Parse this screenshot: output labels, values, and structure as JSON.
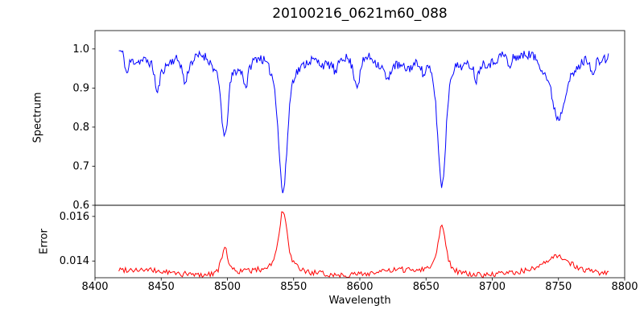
{
  "figure": {
    "background": "#ffffff"
  },
  "chart_data": {
    "type": "line",
    "title": "20100216_0621m60_088",
    "xlabel": "Wavelength",
    "xlim": [
      8400,
      8800
    ],
    "x_range": [
      8418,
      8788
    ],
    "x_ticks": [
      8400,
      8450,
      8500,
      8550,
      8600,
      8650,
      8700,
      8750,
      8800
    ],
    "x_tick_labels": [
      "8400",
      "8450",
      "8500",
      "8550",
      "8600",
      "8650",
      "8700",
      "8750",
      "8800"
    ],
    "grid": false,
    "legend_position": "none",
    "panels": [
      {
        "name": "spectrum",
        "ylabel": "Spectrum",
        "ylim": [
          0.6,
          1.047
        ],
        "y_ticks": [
          0.6,
          0.7,
          0.8,
          0.9,
          1.0
        ],
        "y_tick_labels": [
          "0.6",
          "0.7",
          "0.8",
          "0.9",
          "1.0"
        ],
        "color": "#0000ff",
        "continuum": 0.972,
        "noise": 0.012,
        "absorption_lines": [
          {
            "center": 8498,
            "depth": 0.19,
            "width": 2.2
          },
          {
            "center": 8542,
            "depth": 0.36,
            "width": 3.0
          },
          {
            "center": 8662,
            "depth": 0.33,
            "width": 2.8
          },
          {
            "center": 8750,
            "depth": 0.14,
            "width": 4.0
          }
        ],
        "minor_lines": [
          {
            "center": 8424,
            "depth": 0.05,
            "width": 1.2
          },
          {
            "center": 8447,
            "depth": 0.07,
            "width": 1.4
          },
          {
            "center": 8468,
            "depth": 0.06,
            "width": 1.6
          },
          {
            "center": 8514,
            "depth": 0.05,
            "width": 1.3
          },
          {
            "center": 8582,
            "depth": 0.04,
            "width": 1.5
          },
          {
            "center": 8598,
            "depth": 0.07,
            "width": 2.2
          },
          {
            "center": 8621,
            "depth": 0.04,
            "width": 1.4
          },
          {
            "center": 8648,
            "depth": 0.04,
            "width": 1.2
          },
          {
            "center": 8688,
            "depth": 0.05,
            "width": 1.5
          },
          {
            "center": 8713,
            "depth": 0.04,
            "width": 1.4
          },
          {
            "center": 8776,
            "depth": 0.05,
            "width": 1.3
          }
        ]
      },
      {
        "name": "error",
        "ylabel": "Error",
        "ylim": [
          0.01325,
          0.0165
        ],
        "y_ticks": [
          0.014,
          0.016
        ],
        "y_tick_labels": [
          "0.014",
          "0.016"
        ],
        "color": "#ff0000",
        "baseline": 0.0135,
        "noise": 0.00013,
        "peaks": [
          {
            "center": 8498,
            "height": 0.0011,
            "width": 2.2
          },
          {
            "center": 8542,
            "height": 0.0026,
            "width": 2.8
          },
          {
            "center": 8662,
            "height": 0.0021,
            "width": 2.6
          },
          {
            "center": 8750,
            "height": 0.0006,
            "width": 7.0
          }
        ]
      }
    ]
  }
}
